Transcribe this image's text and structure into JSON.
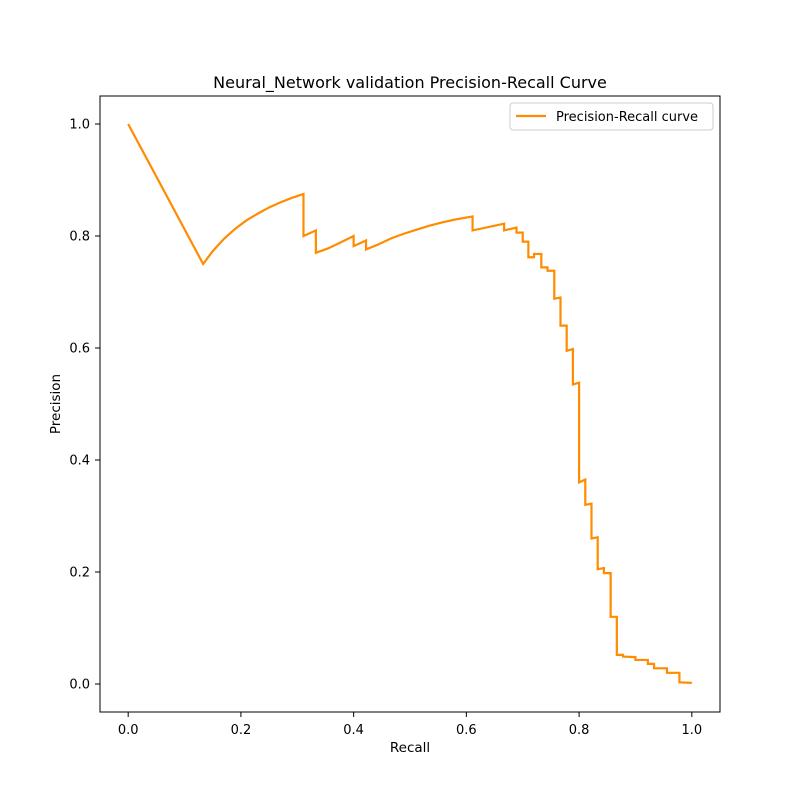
{
  "chart_data": {
    "type": "line",
    "title": "Neural_Network validation Precision-Recall Curve",
    "xlabel": "Recall",
    "ylabel": "Precision",
    "xlim": [
      -0.05,
      1.05
    ],
    "ylim": [
      -0.05,
      1.05
    ],
    "xticks": [
      "0.0",
      "0.2",
      "0.4",
      "0.6",
      "0.8",
      "1.0"
    ],
    "yticks": [
      "0.0",
      "0.2",
      "0.4",
      "0.6",
      "0.8",
      "1.0"
    ],
    "grid": false,
    "legend_position": "top-right",
    "series": [
      {
        "name": "Precision-Recall curve",
        "color": "#ff8c00",
        "recall": [
          0.0,
          0.133,
          0.15,
          0.17,
          0.19,
          0.21,
          0.23,
          0.25,
          0.27,
          0.29,
          0.311,
          0.311,
          0.333,
          0.333,
          0.355,
          0.378,
          0.4,
          0.4,
          0.422,
          0.422,
          0.444,
          0.467,
          0.489,
          0.511,
          0.533,
          0.556,
          0.578,
          0.6,
          0.611,
          0.611,
          0.667,
          0.667,
          0.689,
          0.689,
          0.7,
          0.7,
          0.71,
          0.71,
          0.72,
          0.72,
          0.733,
          0.733,
          0.744,
          0.744,
          0.756,
          0.756,
          0.767,
          0.767,
          0.778,
          0.778,
          0.789,
          0.789,
          0.8,
          0.8,
          0.811,
          0.811,
          0.822,
          0.822,
          0.833,
          0.833,
          0.844,
          0.844,
          0.856,
          0.856,
          0.867,
          0.867,
          0.878,
          0.878,
          0.9,
          0.9,
          0.922,
          0.922,
          0.933,
          0.933,
          0.956,
          0.956,
          0.978,
          0.978,
          1.0
        ],
        "precision": [
          1.0,
          0.75,
          0.773,
          0.795,
          0.813,
          0.828,
          0.84,
          0.851,
          0.86,
          0.868,
          0.875,
          0.8,
          0.81,
          0.77,
          0.778,
          0.789,
          0.8,
          0.782,
          0.792,
          0.776,
          0.785,
          0.796,
          0.804,
          0.811,
          0.818,
          0.824,
          0.829,
          0.833,
          0.835,
          0.81,
          0.822,
          0.81,
          0.815,
          0.806,
          0.806,
          0.79,
          0.79,
          0.762,
          0.762,
          0.768,
          0.768,
          0.744,
          0.744,
          0.738,
          0.738,
          0.688,
          0.69,
          0.64,
          0.64,
          0.595,
          0.598,
          0.535,
          0.538,
          0.36,
          0.365,
          0.32,
          0.322,
          0.26,
          0.262,
          0.205,
          0.207,
          0.198,
          0.198,
          0.12,
          0.12,
          0.052,
          0.052,
          0.049,
          0.048,
          0.043,
          0.043,
          0.036,
          0.036,
          0.028,
          0.028,
          0.02,
          0.02,
          0.003,
          0.002
        ]
      }
    ]
  }
}
